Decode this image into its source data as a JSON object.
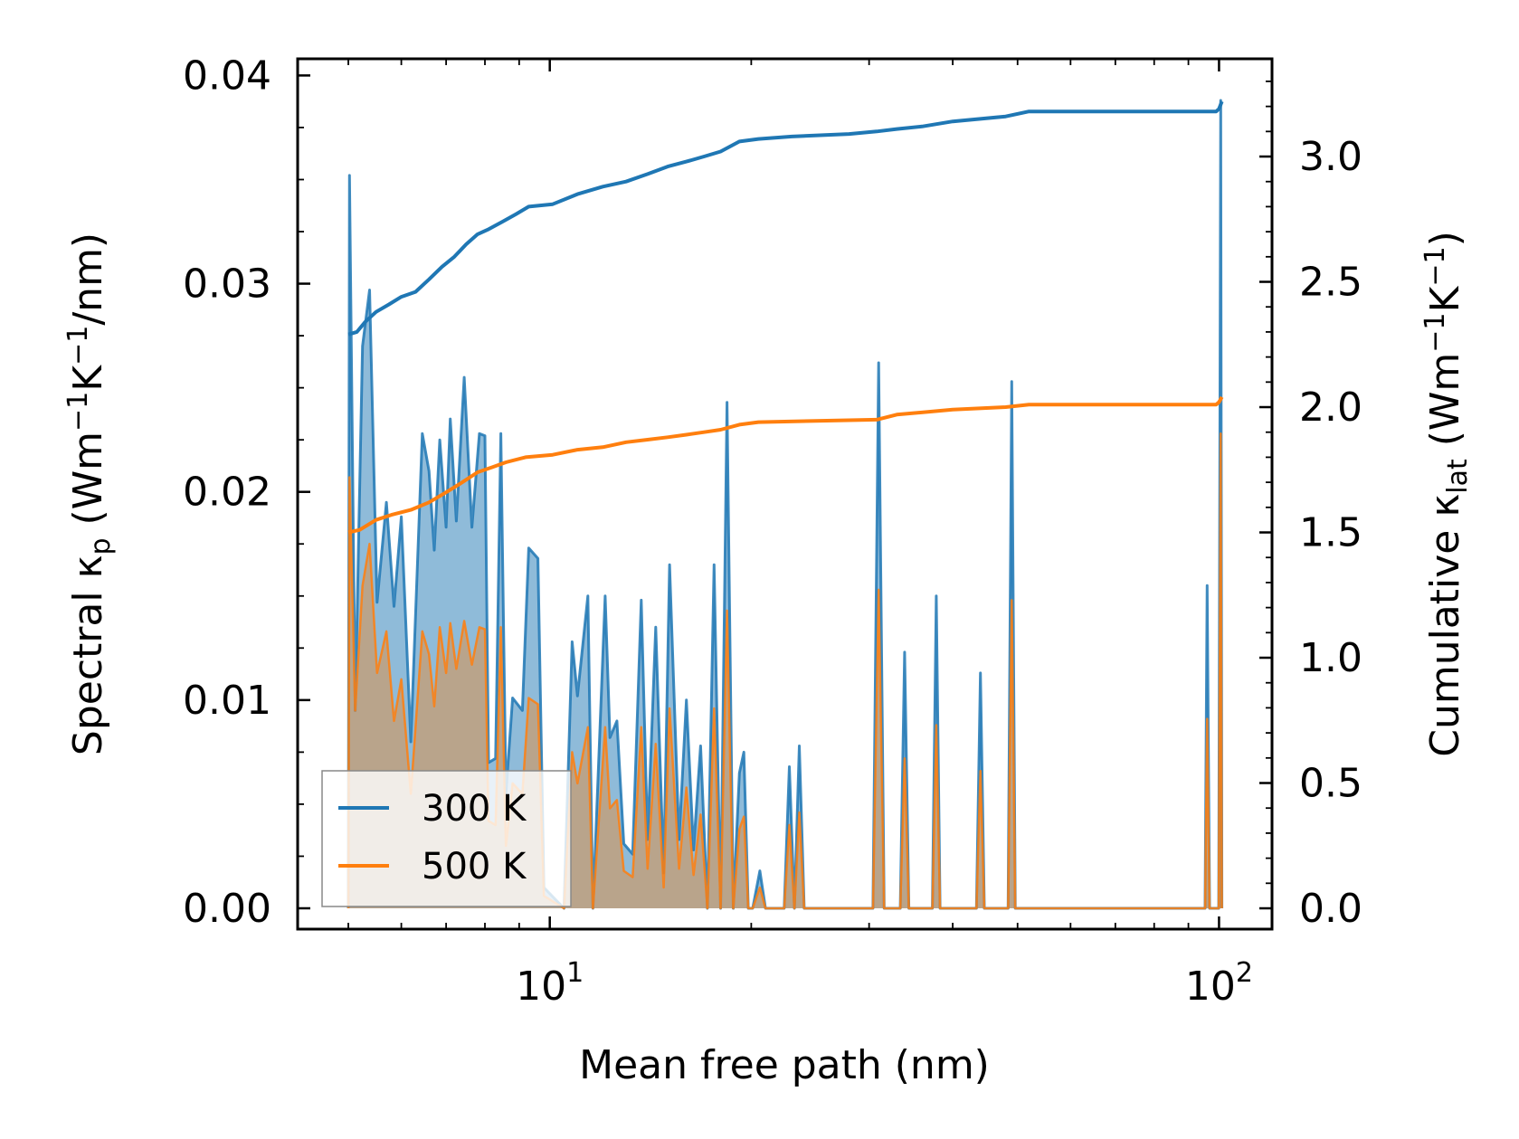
{
  "chart_data": {
    "type": "line",
    "xlabel": "Mean free path (nm)",
    "ylabel_left": {
      "prefix": "Spectral κ",
      "sub": "p",
      "unit_open": " (Wm",
      "sup1": "−1",
      "mid": "K",
      "sup2": "−1",
      "unit_close": "/nm)"
    },
    "ylabel_right": {
      "prefix": "Cumulative κ",
      "sub": "lat",
      "unit_open": " (Wm",
      "sup1": "−1",
      "mid": "K",
      "sup2": "−1",
      "unit_close": ")"
    },
    "x_scale": "log",
    "xlim": [
      4.2,
      120
    ],
    "ylim_left": [
      -0.001,
      0.0408
    ],
    "ylim_right": [
      -0.083,
      3.39
    ],
    "x_ticks": [
      {
        "value": 10,
        "base": "10",
        "exp": "1"
      },
      {
        "value": 100,
        "base": "10",
        "exp": "2"
      }
    ],
    "y_ticks_left": [
      {
        "value": 0.0,
        "label": "0.00"
      },
      {
        "value": 0.01,
        "label": "0.01"
      },
      {
        "value": 0.02,
        "label": "0.02"
      },
      {
        "value": 0.03,
        "label": "0.03"
      },
      {
        "value": 0.04,
        "label": "0.04"
      }
    ],
    "y_ticks_right": [
      {
        "value": 0.0,
        "label": "0.0"
      },
      {
        "value": 0.5,
        "label": "0.5"
      },
      {
        "value": 1.0,
        "label": "1.0"
      },
      {
        "value": 1.5,
        "label": "1.5"
      },
      {
        "value": 2.0,
        "label": "2.0"
      },
      {
        "value": 2.5,
        "label": "2.5"
      },
      {
        "value": 3.0,
        "label": "3.0"
      }
    ],
    "legend": {
      "position": "lower-left",
      "entries": [
        "300 K",
        "500 K"
      ]
    },
    "series": [
      {
        "name": "300 K",
        "color": "#1f77b4",
        "spectral": [
          [
            5.0,
            0.0
          ],
          [
            5.02,
            0.0352
          ],
          [
            5.12,
            0.0095
          ],
          [
            5.25,
            0.027
          ],
          [
            5.38,
            0.0297
          ],
          [
            5.52,
            0.0147
          ],
          [
            5.7,
            0.0195
          ],
          [
            5.85,
            0.0145
          ],
          [
            6.0,
            0.0188
          ],
          [
            6.2,
            0.008
          ],
          [
            6.45,
            0.0228
          ],
          [
            6.6,
            0.021
          ],
          [
            6.72,
            0.0172
          ],
          [
            6.85,
            0.0225
          ],
          [
            7.0,
            0.0183
          ],
          [
            7.1,
            0.0235
          ],
          [
            7.25,
            0.0186
          ],
          [
            7.45,
            0.0255
          ],
          [
            7.65,
            0.0183
          ],
          [
            7.85,
            0.0228
          ],
          [
            8.0,
            0.0227
          ],
          [
            8.1,
            0.007
          ],
          [
            8.3,
            0.0072
          ],
          [
            8.45,
            0.0228
          ],
          [
            8.6,
            0.0055
          ],
          [
            8.8,
            0.0101
          ],
          [
            9.1,
            0.0095
          ],
          [
            9.3,
            0.0173
          ],
          [
            9.6,
            0.0168
          ],
          [
            9.8,
            0.001
          ],
          [
            10.5,
            0.0
          ],
          [
            10.8,
            0.0128
          ],
          [
            11.0,
            0.0102
          ],
          [
            11.4,
            0.015
          ],
          [
            11.6,
            0.0
          ],
          [
            12.1,
            0.015
          ],
          [
            12.3,
            0.0082
          ],
          [
            12.6,
            0.009
          ],
          [
            12.9,
            0.0031
          ],
          [
            13.3,
            0.0026
          ],
          [
            13.7,
            0.0148
          ],
          [
            14.0,
            0.0033
          ],
          [
            14.4,
            0.0135
          ],
          [
            14.8,
            0.0017
          ],
          [
            15.1,
            0.0165
          ],
          [
            15.6,
            0.0033
          ],
          [
            16.0,
            0.01
          ],
          [
            16.4,
            0.0028
          ],
          [
            16.8,
            0.0078
          ],
          [
            17.2,
            0.0
          ],
          [
            17.6,
            0.0165
          ],
          [
            18.0,
            0.0
          ],
          [
            18.4,
            0.0243
          ],
          [
            18.8,
            0.0
          ],
          [
            19.2,
            0.0065
          ],
          [
            19.5,
            0.0075
          ],
          [
            19.8,
            0.0
          ],
          [
            20.1,
            0.0
          ],
          [
            20.6,
            0.0018
          ],
          [
            21.0,
            0.0
          ],
          [
            22.4,
            0.0
          ],
          [
            22.8,
            0.0068
          ],
          [
            23.2,
            0.0
          ],
          [
            23.6,
            0.0078
          ],
          [
            24.0,
            0.0
          ],
          [
            30.4,
            0.0
          ],
          [
            31.0,
            0.0262
          ],
          [
            31.6,
            0.0
          ],
          [
            33.4,
            0.0
          ],
          [
            33.9,
            0.0123
          ],
          [
            34.4,
            0.0
          ],
          [
            37.3,
            0.0
          ],
          [
            37.8,
            0.015
          ],
          [
            38.3,
            0.0
          ],
          [
            43.4,
            0.0
          ],
          [
            44.0,
            0.0113
          ],
          [
            44.6,
            0.0
          ],
          [
            48.4,
            0.0
          ],
          [
            49.0,
            0.0253
          ],
          [
            49.6,
            0.0
          ],
          [
            95.3,
            0.0
          ],
          [
            96.0,
            0.0155
          ],
          [
            96.8,
            0.0
          ],
          [
            99.9,
            0.0
          ],
          [
            100.6,
            0.0388
          ],
          [
            101.0,
            0.0
          ]
        ],
        "cumulative": [
          [
            5.0,
            2.29
          ],
          [
            5.15,
            2.3
          ],
          [
            5.3,
            2.34
          ],
          [
            5.5,
            2.38
          ],
          [
            5.75,
            2.41
          ],
          [
            6.0,
            2.44
          ],
          [
            6.3,
            2.46
          ],
          [
            6.6,
            2.51
          ],
          [
            6.9,
            2.56
          ],
          [
            7.2,
            2.6
          ],
          [
            7.5,
            2.65
          ],
          [
            7.8,
            2.69
          ],
          [
            8.1,
            2.71
          ],
          [
            8.5,
            2.74
          ],
          [
            8.9,
            2.77
          ],
          [
            9.3,
            2.8
          ],
          [
            10.1,
            2.81
          ],
          [
            11.0,
            2.85
          ],
          [
            12.0,
            2.88
          ],
          [
            13.0,
            2.9
          ],
          [
            14.0,
            2.93
          ],
          [
            15.0,
            2.96
          ],
          [
            16.0,
            2.98
          ],
          [
            17.0,
            3.0
          ],
          [
            18.0,
            3.02
          ],
          [
            19.2,
            3.06
          ],
          [
            20.5,
            3.07
          ],
          [
            23.0,
            3.08
          ],
          [
            28.0,
            3.09
          ],
          [
            30.8,
            3.1
          ],
          [
            33.0,
            3.11
          ],
          [
            36.0,
            3.12
          ],
          [
            40.0,
            3.14
          ],
          [
            48.0,
            3.16
          ],
          [
            52.0,
            3.18
          ],
          [
            70.0,
            3.18
          ],
          [
            99.0,
            3.18
          ],
          [
            100.0,
            3.19
          ],
          [
            101.0,
            3.22
          ]
        ]
      },
      {
        "name": "500 K",
        "color": "#ff7f0e",
        "spectral": [
          [
            5.0,
            0.0
          ],
          [
            5.02,
            0.0207
          ],
          [
            5.12,
            0.0095
          ],
          [
            5.25,
            0.0155
          ],
          [
            5.38,
            0.0175
          ],
          [
            5.52,
            0.0113
          ],
          [
            5.7,
            0.0133
          ],
          [
            5.85,
            0.009
          ],
          [
            6.0,
            0.011
          ],
          [
            6.2,
            0.0055
          ],
          [
            6.45,
            0.0133
          ],
          [
            6.6,
            0.0122
          ],
          [
            6.72,
            0.0097
          ],
          [
            6.85,
            0.0135
          ],
          [
            7.0,
            0.0113
          ],
          [
            7.1,
            0.0137
          ],
          [
            7.25,
            0.0115
          ],
          [
            7.45,
            0.0138
          ],
          [
            7.65,
            0.0117
          ],
          [
            7.85,
            0.0135
          ],
          [
            8.0,
            0.0134
          ],
          [
            8.1,
            0.0042
          ],
          [
            8.3,
            0.004
          ],
          [
            8.45,
            0.0135
          ],
          [
            8.6,
            0.003
          ],
          [
            8.8,
            0.006
          ],
          [
            9.1,
            0.0055
          ],
          [
            9.3,
            0.0101
          ],
          [
            9.6,
            0.0098
          ],
          [
            9.8,
            0.0006
          ],
          [
            10.5,
            0.0
          ],
          [
            10.8,
            0.0075
          ],
          [
            11.0,
            0.006
          ],
          [
            11.4,
            0.0087
          ],
          [
            11.6,
            0.0
          ],
          [
            12.1,
            0.0087
          ],
          [
            12.3,
            0.0048
          ],
          [
            12.6,
            0.0052
          ],
          [
            12.9,
            0.0018
          ],
          [
            13.3,
            0.0015
          ],
          [
            13.7,
            0.0087
          ],
          [
            14.0,
            0.0019
          ],
          [
            14.4,
            0.0079
          ],
          [
            14.8,
            0.001
          ],
          [
            15.1,
            0.0096
          ],
          [
            15.6,
            0.0019
          ],
          [
            16.0,
            0.0058
          ],
          [
            16.4,
            0.0016
          ],
          [
            16.8,
            0.0045
          ],
          [
            17.2,
            0.0
          ],
          [
            17.6,
            0.0096
          ],
          [
            18.0,
            0.0
          ],
          [
            18.4,
            0.0143
          ],
          [
            18.8,
            0.0
          ],
          [
            19.2,
            0.0038
          ],
          [
            19.5,
            0.0044
          ],
          [
            19.8,
            0.0
          ],
          [
            20.1,
            0.0
          ],
          [
            20.6,
            0.001
          ],
          [
            21.0,
            0.0
          ],
          [
            22.4,
            0.0
          ],
          [
            22.8,
            0.004
          ],
          [
            23.2,
            0.0
          ],
          [
            23.6,
            0.0046
          ],
          [
            24.0,
            0.0
          ],
          [
            30.4,
            0.0
          ],
          [
            31.0,
            0.0153
          ],
          [
            31.6,
            0.0
          ],
          [
            33.4,
            0.0
          ],
          [
            33.9,
            0.0072
          ],
          [
            34.4,
            0.0
          ],
          [
            37.3,
            0.0
          ],
          [
            37.8,
            0.0088
          ],
          [
            38.3,
            0.0
          ],
          [
            43.4,
            0.0
          ],
          [
            44.0,
            0.0066
          ],
          [
            44.6,
            0.0
          ],
          [
            48.4,
            0.0
          ],
          [
            49.0,
            0.0148
          ],
          [
            49.6,
            0.0
          ],
          [
            95.3,
            0.0
          ],
          [
            96.0,
            0.0091
          ],
          [
            96.8,
            0.0
          ],
          [
            99.9,
            0.0
          ],
          [
            100.6,
            0.0228
          ],
          [
            101.0,
            0.0
          ]
        ],
        "cumulative": [
          [
            5.0,
            1.5
          ],
          [
            5.2,
            1.51
          ],
          [
            5.5,
            1.55
          ],
          [
            5.8,
            1.57
          ],
          [
            6.2,
            1.59
          ],
          [
            6.6,
            1.62
          ],
          [
            7.0,
            1.66
          ],
          [
            7.4,
            1.7
          ],
          [
            7.8,
            1.74
          ],
          [
            8.2,
            1.76
          ],
          [
            8.6,
            1.78
          ],
          [
            9.2,
            1.8
          ],
          [
            10.1,
            1.81
          ],
          [
            11.0,
            1.83
          ],
          [
            12.0,
            1.84
          ],
          [
            13.0,
            1.86
          ],
          [
            14.0,
            1.87
          ],
          [
            15.0,
            1.88
          ],
          [
            16.0,
            1.89
          ],
          [
            17.0,
            1.9
          ],
          [
            18.0,
            1.91
          ],
          [
            19.2,
            1.93
          ],
          [
            20.5,
            1.94
          ],
          [
            30.8,
            1.95
          ],
          [
            33.0,
            1.97
          ],
          [
            40.0,
            1.99
          ],
          [
            48.0,
            2.0
          ],
          [
            52.0,
            2.01
          ],
          [
            99.0,
            2.01
          ],
          [
            100.0,
            2.02
          ],
          [
            101.0,
            2.04
          ]
        ]
      }
    ]
  }
}
